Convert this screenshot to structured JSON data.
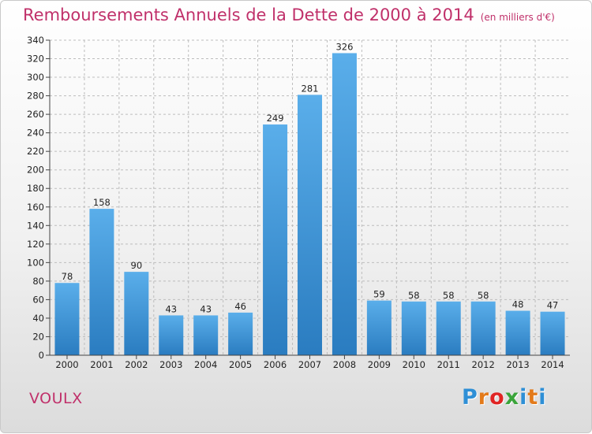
{
  "header": {
    "title": "Remboursements Annuels de la Dette de 2000 à 2014",
    "unit": "(en milliers d'€)"
  },
  "commune": "VOULX",
  "logo": {
    "text": "Proxiti",
    "letters": [
      "P",
      "r",
      "o",
      "x",
      "i",
      "t",
      "i"
    ],
    "colors": [
      "#2e8fd6",
      "#e37a1a",
      "#e02424",
      "#3aa43a",
      "#2e8fd6",
      "#e37a1a",
      "#2e8fd6"
    ]
  },
  "colors": {
    "bar_top": "#5aaeea",
    "bar_bottom": "#2a7cc0",
    "accent": "#c0306a",
    "grid": "#bdbdbd",
    "axis": "#444444"
  },
  "chart_data": {
    "type": "bar",
    "title": "Remboursements Annuels de la Dette de 2000 à 2014",
    "subtitle": "(en milliers d'€)",
    "categories": [
      "2000",
      "2001",
      "2002",
      "2003",
      "2004",
      "2005",
      "2006",
      "2007",
      "2008",
      "2009",
      "2010",
      "2011",
      "2012",
      "2013",
      "2014"
    ],
    "values": [
      78,
      158,
      90,
      43,
      43,
      46,
      249,
      281,
      326,
      59,
      58,
      58,
      58,
      48,
      47
    ],
    "ylim": [
      0,
      340
    ],
    "yticks": [
      0,
      20,
      40,
      60,
      80,
      100,
      120,
      140,
      160,
      180,
      200,
      220,
      240,
      260,
      280,
      300,
      320,
      340
    ],
    "xlabel": "",
    "ylabel": "",
    "grid": true,
    "data_labels": true
  }
}
